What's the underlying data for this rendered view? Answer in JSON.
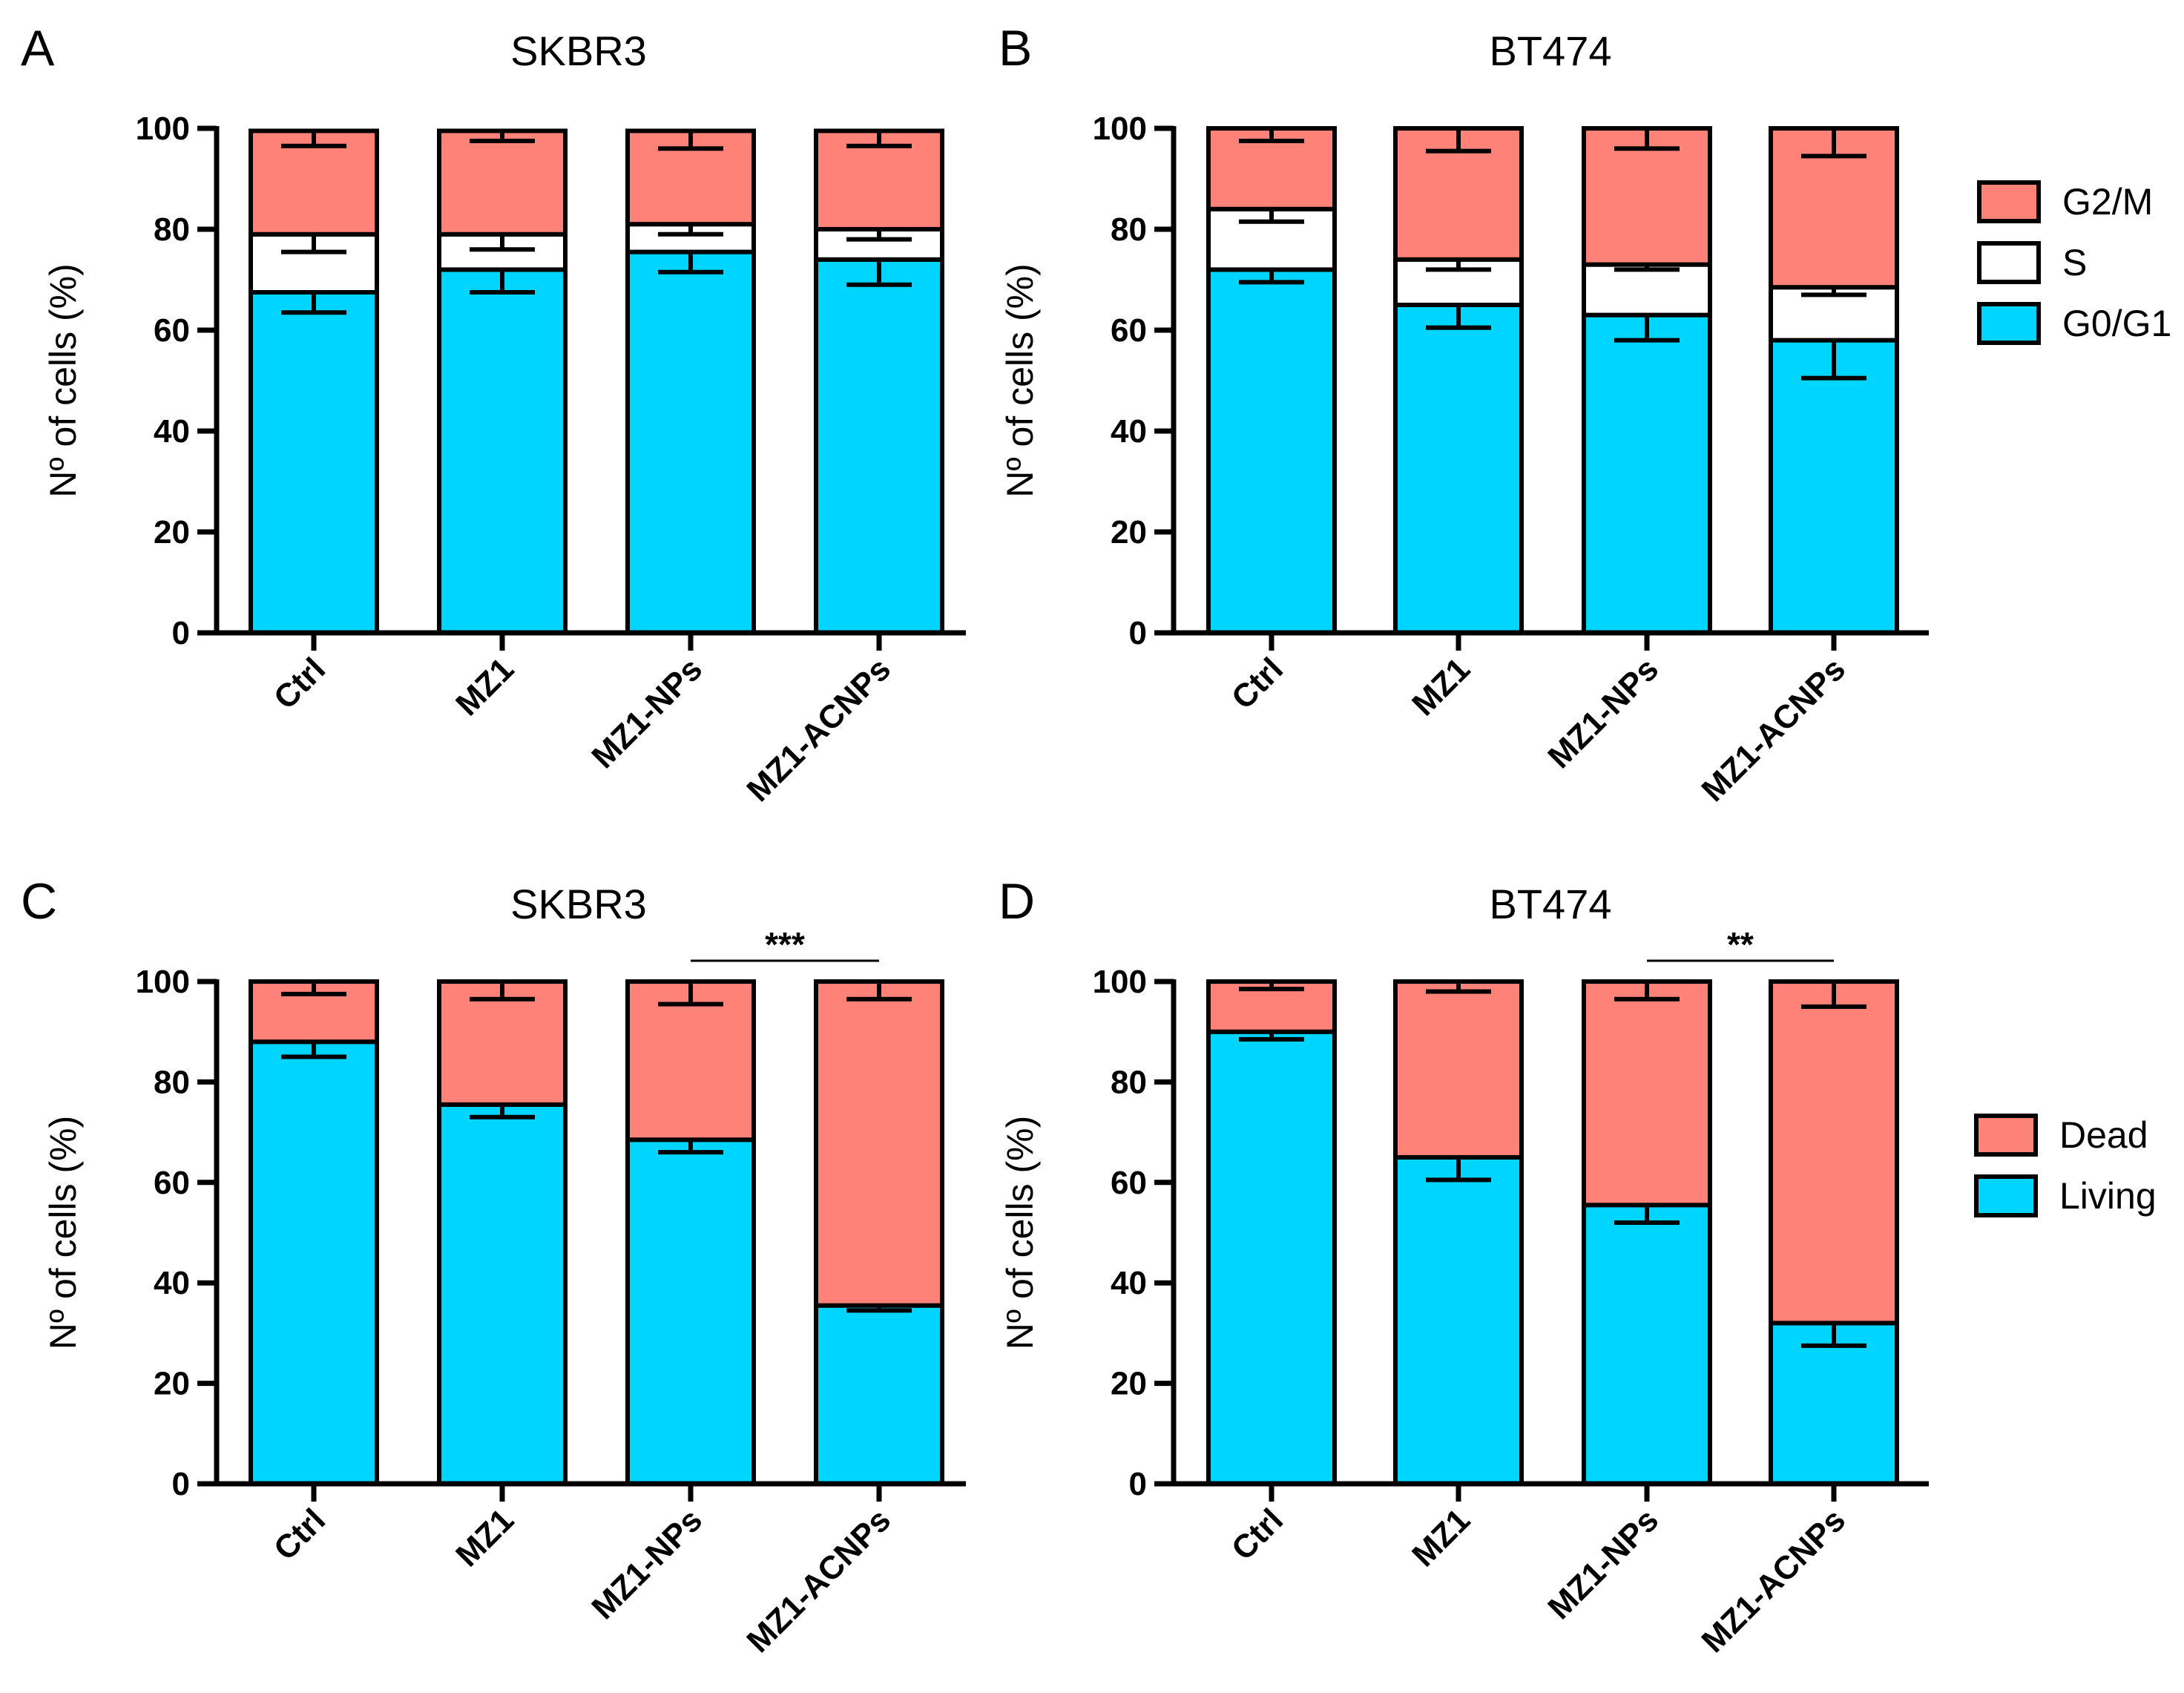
{
  "chart_data": [
    {
      "type": "bar",
      "stacked": true,
      "panel": "A",
      "title": "SKBR3",
      "ylabel": "Nº of cells (%)",
      "ylim": [
        0,
        100
      ],
      "yticks": [
        0,
        20,
        40,
        60,
        80,
        100
      ],
      "categories": [
        "Ctrl",
        "MZ1",
        "MZ1-NPs",
        "MZ1-ACNPs"
      ],
      "series": [
        {
          "name": "G0/G1",
          "color": "#00d5ff",
          "values": [
            67.5,
            72,
            75.5,
            74
          ],
          "error": [
            4,
            4.5,
            4,
            5
          ]
        },
        {
          "name": "S",
          "color": "#ffffff",
          "values": [
            11.5,
            7,
            5.5,
            6
          ],
          "error": [
            3.5,
            3,
            2,
            2
          ]
        },
        {
          "name": "G2/M",
          "color": "#ff8279",
          "values": [
            20.5,
            20.5,
            18.5,
            19.5
          ],
          "error": [
            3,
            2,
            3.5,
            3
          ]
        }
      ],
      "legend": {
        "position": "right",
        "entries": [
          "G2/M",
          "S",
          "G0/G1"
        ]
      }
    },
    {
      "type": "bar",
      "stacked": true,
      "panel": "B",
      "title": "BT474",
      "ylabel": "Nº of cells (%)",
      "ylim": [
        0,
        100
      ],
      "yticks": [
        0,
        20,
        40,
        60,
        80,
        100
      ],
      "categories": [
        "Ctrl",
        "MZ1",
        "MZ1-NPs",
        "MZ1-ACNPs"
      ],
      "series": [
        {
          "name": "G0/G1",
          "color": "#00d5ff",
          "values": [
            72,
            65,
            63,
            58
          ],
          "error": [
            2.5,
            4.5,
            5,
            7.5
          ]
        },
        {
          "name": "S",
          "color": "#ffffff",
          "values": [
            12,
            9,
            10,
            10.5
          ],
          "error": [
            2.5,
            2,
            1,
            1.5
          ]
        },
        {
          "name": "G2/M",
          "color": "#ff8279",
          "values": [
            16,
            26,
            27,
            31.5
          ],
          "error": [
            2.5,
            4.5,
            4,
            5.5
          ]
        }
      ],
      "legend": {
        "position": "right",
        "entries": [
          "G2/M",
          "S",
          "G0/G1"
        ]
      }
    },
    {
      "type": "bar",
      "stacked": true,
      "panel": "C",
      "title": "SKBR3",
      "ylabel": "Nº of cells (%)",
      "ylim": [
        0,
        100
      ],
      "yticks": [
        0,
        20,
        40,
        60,
        80,
        100
      ],
      "categories": [
        "Ctrl",
        "MZ1",
        "MZ1-NPs",
        "MZ1-ACNPs"
      ],
      "series": [
        {
          "name": "Living",
          "color": "#00d5ff",
          "values": [
            88,
            75.5,
            68.5,
            35.5
          ],
          "error": [
            3,
            2.5,
            2.5,
            1
          ]
        },
        {
          "name": "Dead",
          "color": "#ff8279",
          "values": [
            12,
            24.5,
            31.5,
            64.5
          ],
          "error": [
            2.5,
            3.5,
            4.5,
            3.5
          ]
        }
      ],
      "significance": {
        "between": [
          "MZ1-NPs",
          "MZ1-ACNPs"
        ],
        "label": "***"
      },
      "legend": {
        "position": "right",
        "entries": [
          "Dead",
          "Living"
        ]
      }
    },
    {
      "type": "bar",
      "stacked": true,
      "panel": "D",
      "title": "BT474",
      "ylabel": "Nº of cells (%)",
      "ylim": [
        0,
        100
      ],
      "yticks": [
        0,
        20,
        40,
        60,
        80,
        100
      ],
      "categories": [
        "Ctrl",
        "MZ1",
        "MZ1-NPs",
        "MZ1-ACNPs"
      ],
      "series": [
        {
          "name": "Living",
          "color": "#00d5ff",
          "values": [
            90,
            65,
            55.5,
            32
          ],
          "error": [
            1.5,
            4.5,
            3.5,
            4.5
          ]
        },
        {
          "name": "Dead",
          "color": "#ff8279",
          "values": [
            10,
            35,
            44.5,
            68
          ],
          "error": [
            1.5,
            2,
            3.5,
            5
          ]
        }
      ],
      "significance": {
        "between": [
          "MZ1-NPs",
          "MZ1-ACNPs"
        ],
        "label": "**"
      },
      "legend": {
        "position": "right",
        "entries": [
          "Dead",
          "Living"
        ]
      }
    }
  ]
}
